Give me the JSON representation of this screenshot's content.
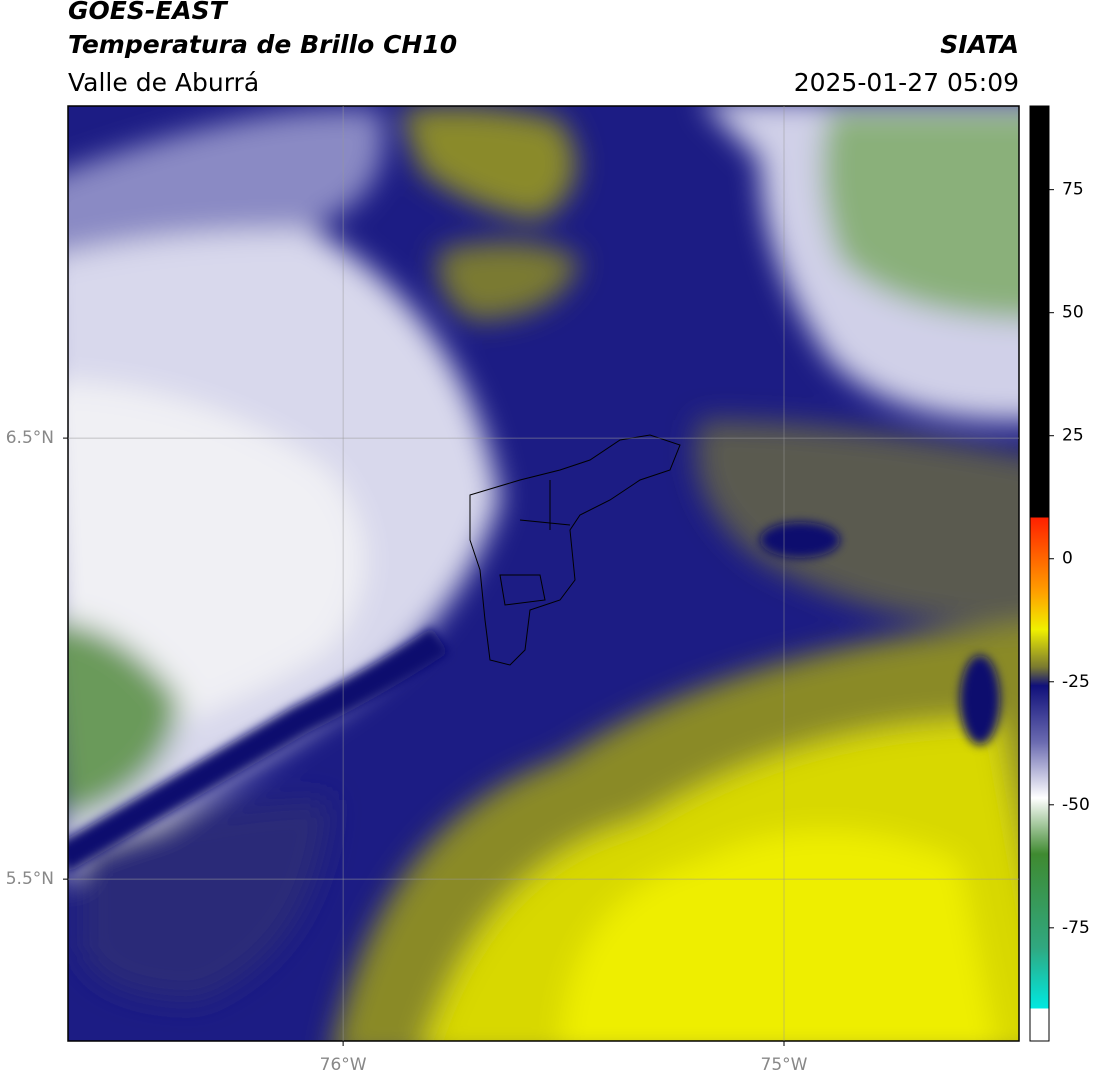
{
  "header": {
    "title": "GOES-EAST",
    "subtitle": "Temperatura de Brillo CH10",
    "region": "Valle de Aburrá",
    "source": "SIATA",
    "datetime": "2025-01-27 05:09"
  },
  "map": {
    "xlim": [
      -76.624,
      -74.467
    ],
    "ylim": [
      5.133,
      7.253
    ],
    "xticks": [
      {
        "value": -76,
        "label": "76°W"
      },
      {
        "value": -75,
        "label": "75°W"
      }
    ],
    "yticks": [
      {
        "value": 6.5,
        "label": "6.5°N"
      },
      {
        "value": 5.5,
        "label": "5.5°N"
      }
    ]
  },
  "colorbar": {
    "lim": [
      -98,
      92
    ],
    "ticks": [
      75,
      50,
      25,
      0,
      -25,
      -50,
      -75
    ]
  }
}
